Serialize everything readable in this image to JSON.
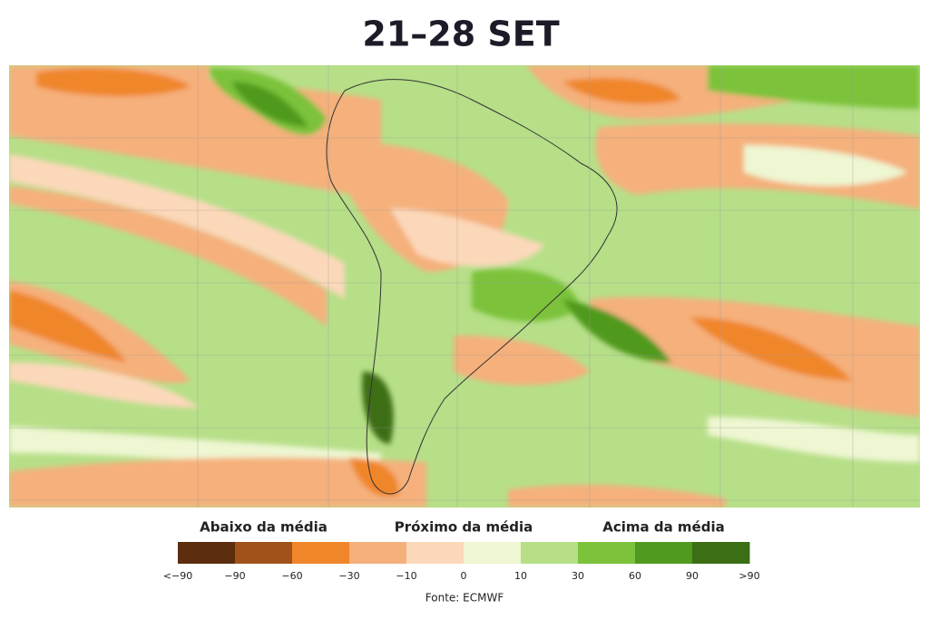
{
  "title": "21–28 SET",
  "legend": {
    "groups": [
      "Abaixo da média",
      "Próximo da média",
      "Acima da média"
    ],
    "colors": [
      "#5b2d0c",
      "#a0521a",
      "#f0862a",
      "#f5b07c",
      "#fcd8ba",
      "#eef6d2",
      "#b6df88",
      "#7cc23a",
      "#4f9a1f",
      "#3c6e15"
    ],
    "ticks": [
      "<−90",
      "−90",
      "−60",
      "−30",
      "−10",
      "0",
      "10",
      "30",
      "60",
      "90",
      ">90"
    ]
  },
  "source": "Fonte: ECMWF"
}
